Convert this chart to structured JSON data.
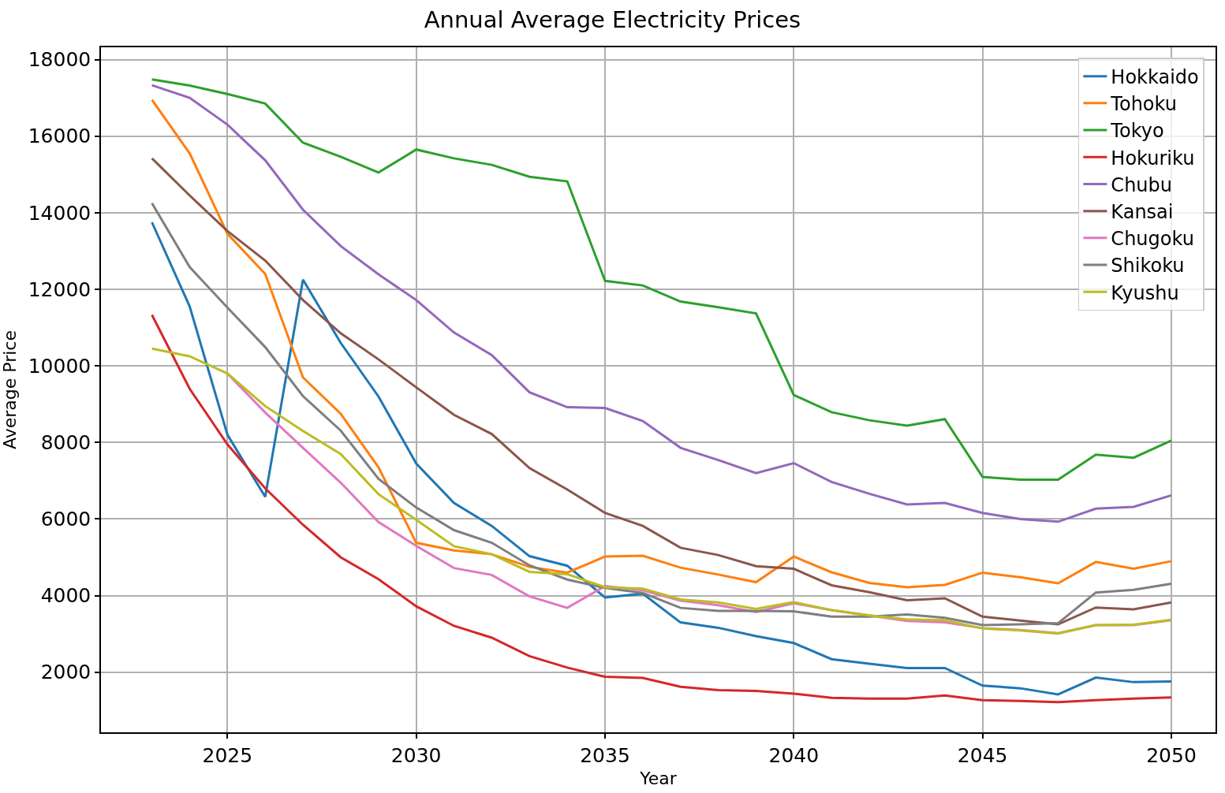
{
  "chart_data": {
    "type": "line",
    "title": "Annual Average Electricity Prices",
    "xlabel": "Year",
    "ylabel": "Average Price",
    "x": [
      2023,
      2024,
      2025,
      2026,
      2027,
      2028,
      2029,
      2030,
      2031,
      2032,
      2033,
      2034,
      2035,
      2036,
      2037,
      2038,
      2039,
      2040,
      2041,
      2042,
      2043,
      2044,
      2045,
      2046,
      2047,
      2048,
      2049,
      2050
    ],
    "xlim": [
      2021.65,
      2051.17
    ],
    "xticks": [
      2025,
      2030,
      2035,
      2040,
      2045,
      2050
    ],
    "ylim": [
      430,
      18320
    ],
    "yticks": [
      2000,
      4000,
      6000,
      8000,
      10000,
      12000,
      14000,
      16000,
      18000
    ],
    "grid": true,
    "legend": "top right",
    "line_style": "solid",
    "marker": "none",
    "series": [
      {
        "name": "Hokkaido",
        "color": "#1f77b4",
        "values": [
          13750,
          11550,
          8200,
          6580,
          12250,
          10600,
          9200,
          7450,
          6420,
          5820,
          5030,
          4780,
          3950,
          4050,
          3300,
          3160,
          2940,
          2760,
          2340,
          2220,
          2110,
          2110,
          1650,
          1580,
          1420,
          1860,
          1740,
          1760
        ]
      },
      {
        "name": "Tohoku",
        "color": "#ff7f0e",
        "values": [
          16950,
          15550,
          13450,
          12400,
          9700,
          8750,
          7350,
          5380,
          5180,
          5080,
          4750,
          4600,
          5020,
          5040,
          4730,
          4550,
          4350,
          5020,
          4610,
          4330,
          4220,
          4280,
          4600,
          4480,
          4320,
          4880,
          4700,
          4900
        ]
      },
      {
        "name": "Tokyo",
        "color": "#2ca02c",
        "values": [
          17480,
          17320,
          17100,
          16850,
          15830,
          15460,
          15050,
          15650,
          15420,
          15250,
          14940,
          14820,
          12220,
          12100,
          11680,
          11530,
          11370,
          9240,
          8790,
          8580,
          8440,
          8610,
          7100,
          7030,
          7030,
          7680,
          7600,
          8050
        ]
      },
      {
        "name": "Hokuriku",
        "color": "#d62728",
        "values": [
          11330,
          9400,
          7950,
          6800,
          5850,
          5000,
          4430,
          3720,
          3210,
          2900,
          2420,
          2120,
          1880,
          1850,
          1620,
          1530,
          1510,
          1440,
          1330,
          1310,
          1310,
          1390,
          1270,
          1250,
          1220,
          1270,
          1310,
          1340
        ]
      },
      {
        "name": "Chubu",
        "color": "#9467bd",
        "values": [
          17330,
          17000,
          16300,
          15370,
          14080,
          13130,
          12390,
          11720,
          10870,
          10280,
          9310,
          8920,
          8900,
          8560,
          7860,
          7540,
          7200,
          7460,
          6970,
          6660,
          6380,
          6420,
          6160,
          6000,
          5930,
          6270,
          6320,
          6620
        ]
      },
      {
        "name": "Kansai",
        "color": "#8c564b",
        "values": [
          15420,
          14450,
          13520,
          12750,
          11720,
          10850,
          10170,
          9440,
          8720,
          8220,
          7330,
          6770,
          6160,
          5820,
          5250,
          5060,
          4770,
          4700,
          4270,
          4090,
          3880,
          3930,
          3450,
          3350,
          3250,
          3690,
          3640,
          3820
        ]
      },
      {
        "name": "Chugoku",
        "color": "#e377c2",
        "values": [
          null,
          null,
          9800,
          8780,
          7860,
          6950,
          5920,
          5300,
          4720,
          4540,
          3980,
          3680,
          4250,
          4140,
          3870,
          3750,
          3570,
          3800,
          3620,
          3480,
          3340,
          3300,
          3150,
          3100,
          3020,
          3230,
          3230,
          3360
        ]
      },
      {
        "name": "Shikoku",
        "color": "#7f7f7f",
        "values": [
          14250,
          12580,
          11520,
          10490,
          9210,
          8310,
          7050,
          6300,
          5710,
          5380,
          4790,
          4420,
          4200,
          4070,
          3680,
          3600,
          3600,
          3590,
          3450,
          3450,
          3510,
          3420,
          3230,
          3250,
          3280,
          4080,
          4150,
          4310
        ]
      },
      {
        "name": "Kyushu",
        "color": "#bcbd22",
        "values": [
          10450,
          10250,
          9800,
          8950,
          8300,
          7700,
          6650,
          5980,
          5290,
          5080,
          4620,
          4560,
          4220,
          4180,
          3900,
          3820,
          3650,
          3830,
          3620,
          3480,
          3380,
          3360,
          3140,
          3090,
          3010,
          3230,
          3240,
          3370
        ]
      }
    ]
  }
}
